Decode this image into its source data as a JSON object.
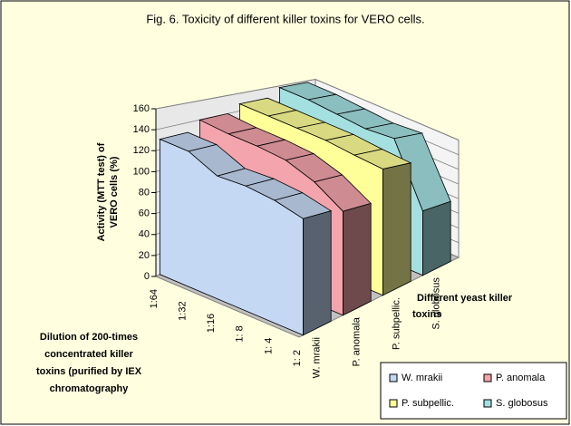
{
  "chart_data": {
    "type": "area3d",
    "title": "Fig. 6. Toxicity of different killer toxins for VERO cells.",
    "y_label": [
      "Activity (MTT test) of",
      "VERO cells (%)"
    ],
    "x_label": [
      "Dilution of 200-times",
      "concentrated killer",
      "toxins (purified by IEX",
      "chromatography"
    ],
    "z_label": [
      "Different yeast killer",
      "toxins"
    ],
    "categories": [
      "1:64",
      "1:32",
      "1:16",
      "1: 8",
      "1: 4",
      "1: 2"
    ],
    "series": [
      {
        "name": "W. mrakii",
        "color": "#c4d8f4",
        "values": [
          130,
          130,
          118,
          120,
          118,
          112
        ]
      },
      {
        "name": "P. anomala",
        "color": "#f4a4ac",
        "values": [
          140,
          138,
          138,
          136,
          126,
          108
        ]
      },
      {
        "name": "P. subpellic.",
        "color": "#ffff99",
        "values": [
          148,
          148,
          148,
          148,
          145,
          143
        ]
      },
      {
        "name": "S. globosus",
        "color": "#a4e0e0",
        "values": [
          158,
          158,
          155,
          152,
          155,
          80
        ]
      }
    ],
    "ylim": [
      0,
      160
    ],
    "yticks": [
      0,
      20,
      40,
      60,
      80,
      100,
      120,
      140,
      160
    ],
    "grid": true,
    "legend": "bottom-right"
  }
}
